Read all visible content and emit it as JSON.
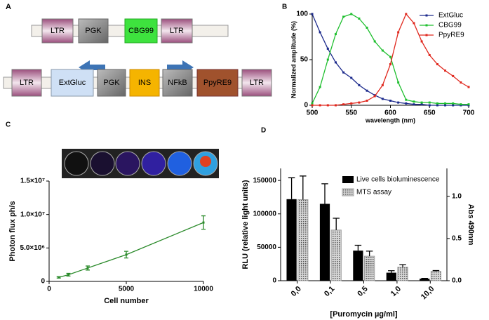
{
  "panels": [
    "A",
    "B",
    "C",
    "D"
  ],
  "diagram": {
    "top_row": [
      "LTR",
      "PGK",
      "CBG99",
      "LTR"
    ],
    "bottom_row": [
      "LTR",
      "ExtGluc",
      "PGK",
      "INS",
      "NFkB",
      "PpyRE9",
      "LTR"
    ]
  },
  "chart_data": [
    {
      "type": "line",
      "xlabel": "wavelength (nm)",
      "ylabel": "Normalized amplitude (%)",
      "x": [
        500,
        510,
        520,
        530,
        540,
        550,
        560,
        570,
        580,
        590,
        600,
        610,
        620,
        630,
        640,
        650,
        660,
        670,
        680,
        690,
        700
      ],
      "series": [
        {
          "name": "ExtGluc",
          "color": "#1c2a8c",
          "values": [
            100,
            80,
            62,
            47,
            36,
            30,
            22,
            16,
            11,
            7,
            5,
            3,
            2,
            1,
            1,
            0,
            0,
            0,
            0,
            0,
            0
          ]
        },
        {
          "name": "CBG99",
          "color": "#1fbf2f",
          "values": [
            2,
            20,
            50,
            78,
            97,
            100,
            95,
            85,
            70,
            60,
            53,
            25,
            6,
            4,
            3,
            3,
            2,
            2,
            2,
            1,
            1
          ]
        },
        {
          "name": "PpyRE9",
          "color": "#e0281e",
          "values": [
            0,
            0,
            0,
            0,
            1,
            2,
            3,
            5,
            10,
            22,
            45,
            80,
            100,
            90,
            70,
            55,
            45,
            38,
            32,
            25,
            20
          ]
        }
      ],
      "xlim": [
        500,
        700
      ],
      "xticks": [
        500,
        550,
        600,
        650,
        700
      ],
      "ylim": [
        0,
        100
      ],
      "yticks": [
        0,
        50,
        100
      ],
      "legend": "upper right"
    },
    {
      "type": "line",
      "xlabel": "Cell number",
      "ylabel": "Photon flux ph/s",
      "x": [
        625,
        1250,
        2500,
        5000,
        10000
      ],
      "series": [
        {
          "color": "#2a8a2a",
          "values": [
            600000,
            1000000,
            2000000,
            4000000,
            8800000
          ],
          "errors": [
            100000,
            200000,
            300000,
            500000,
            1000000
          ]
        }
      ],
      "xlim": [
        0,
        10000
      ],
      "xticks": [
        0,
        5000,
        10000
      ],
      "ylim": [
        0,
        15000000
      ],
      "yticks": [
        0,
        {
          "value": 5000000,
          "label": "5.0×10⁶"
        },
        {
          "value": 10000000,
          "label": "1.0×10⁷"
        },
        {
          "value": 15000000,
          "label": "1.5×10⁷"
        }
      ]
    },
    {
      "type": "bar",
      "xlabel": "[Puromycin µg/ml]",
      "ylabel": "RLU (relative light units)",
      "y2label": "Abs 490nm",
      "categories": [
        "0,0",
        "0,1",
        "0,5",
        "1,0",
        "10,0"
      ],
      "series": [
        {
          "name": "Live cells bioluminescence",
          "color": "#000000",
          "values": [
            122000,
            115000,
            45000,
            12000,
            3000
          ],
          "errors": [
            32000,
            30000,
            8000,
            3000,
            500
          ]
        },
        {
          "name": "MTS assay",
          "color": "#a0a0a0",
          "axis": "y2",
          "values": [
            0.96,
            0.6,
            0.29,
            0.16,
            0.11
          ],
          "errors": [
            0.28,
            0.14,
            0.06,
            0.03,
            0.01
          ]
        }
      ],
      "ylim": [
        0,
        168000
      ],
      "yticks": [
        0,
        50000,
        100000,
        150000
      ],
      "y2lim": [
        0,
        1.33
      ],
      "y2ticks": [
        {
          "value": 0,
          "label": "0.0"
        },
        {
          "value": 0.5,
          "label": "0.5"
        },
        {
          "value": 1,
          "label": "1.0"
        }
      ],
      "legend": "upper right"
    }
  ]
}
